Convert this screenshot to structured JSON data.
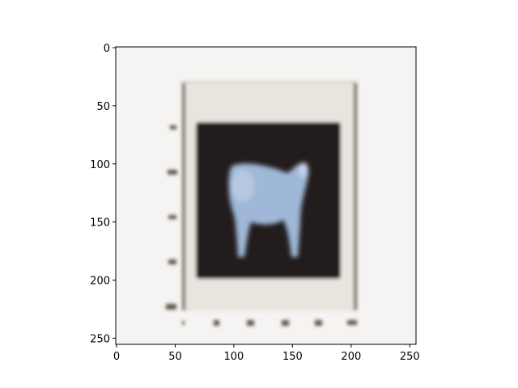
{
  "image_axes": {
    "x_ticks": [
      {
        "value": 0,
        "label": "0"
      },
      {
        "value": 50,
        "label": "50"
      },
      {
        "value": 100,
        "label": "100"
      },
      {
        "value": 150,
        "label": "150"
      },
      {
        "value": 200,
        "label": "200"
      },
      {
        "value": 250,
        "label": "250"
      }
    ],
    "y_ticks": [
      {
        "value": 0,
        "label": "0"
      },
      {
        "value": 50,
        "label": "50"
      },
      {
        "value": 100,
        "label": "100"
      },
      {
        "value": 150,
        "label": "150"
      },
      {
        "value": 200,
        "label": "200"
      },
      {
        "value": 250,
        "label": "250"
      }
    ],
    "x_range": [
      0,
      256
    ],
    "y_range": [
      0,
      256
    ],
    "y_inverted": true
  },
  "image_content": {
    "subject": "blurred picture of a pale blue calf on a black panel inside a light mat frame",
    "colors": {
      "background": "#f5f4f2",
      "mat": "#e8e5df",
      "panel": "#221f1c",
      "calf": "#9fb7d8",
      "frame_edge": "#6e6253"
    }
  }
}
